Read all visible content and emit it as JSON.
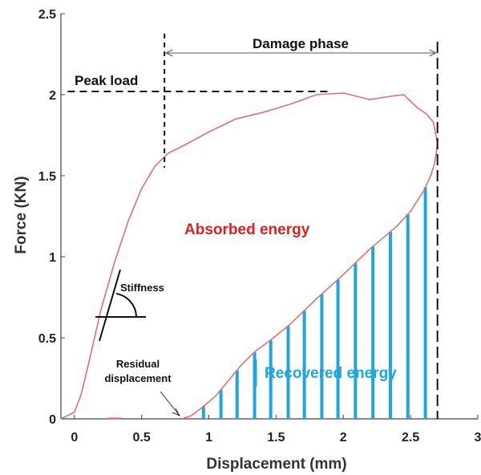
{
  "chart_data": {
    "type": "line",
    "xlabel": "Displacement (mm)",
    "ylabel": "Force (KN)",
    "xlim": [
      -0.1,
      3
    ],
    "ylim": [
      0,
      2.5
    ],
    "xticks": [
      0,
      0.5,
      1,
      1.5,
      2,
      2.5,
      3
    ],
    "xtick_labels": [
      "0",
      "0.5",
      "1",
      "1.5",
      "2",
      "2.5",
      "3"
    ],
    "yticks": [
      0,
      0.5,
      1,
      1.5,
      2,
      2.5
    ],
    "ytick_labels": [
      "0",
      "0.5",
      "1",
      "1.5",
      "2",
      "2.5"
    ],
    "grid": false,
    "curve_color": "#e07070",
    "loading_curve": {
      "x": [
        -0.1,
        0.0,
        0.05,
        0.1,
        0.15,
        0.2,
        0.3,
        0.4,
        0.5,
        0.6,
        0.7,
        0.8,
        1.0,
        1.2,
        1.4,
        1.6,
        1.8,
        2.0,
        2.2,
        2.35,
        2.45,
        2.55,
        2.62,
        2.67,
        2.7
      ],
      "y": [
        0.0,
        0.04,
        0.15,
        0.32,
        0.5,
        0.68,
        0.97,
        1.22,
        1.42,
        1.56,
        1.64,
        1.68,
        1.77,
        1.85,
        1.89,
        1.94,
        2.0,
        2.01,
        1.97,
        1.99,
        2.0,
        1.92,
        1.88,
        1.83,
        1.7
      ]
    },
    "unloading_curve": {
      "x": [
        2.7,
        2.68,
        2.65,
        2.6,
        2.5,
        2.4,
        2.3,
        2.2,
        2.0,
        1.8,
        1.6,
        1.45,
        1.35,
        1.25,
        1.15,
        1.05,
        0.95,
        0.87,
        0.8
      ],
      "y": [
        1.7,
        1.58,
        1.5,
        1.41,
        1.28,
        1.19,
        1.12,
        1.05,
        0.89,
        0.74,
        0.58,
        0.48,
        0.42,
        0.34,
        0.24,
        0.14,
        0.07,
        0.02,
        0.0
      ]
    },
    "recovered_energy_bars": {
      "color": "#1da6e0",
      "x": [
        0.96,
        1.09,
        1.21,
        1.34,
        1.46,
        1.59,
        1.71,
        1.84,
        1.96,
        2.09,
        2.22,
        2.35,
        2.48,
        2.61
      ]
    },
    "annotations": {
      "peak_load": "Peak load",
      "peak_load_value": 2.02,
      "damage_phase": "Damage phase",
      "damage_phase_start": 0.67,
      "damage_phase_end": 2.7,
      "absorbed_energy": "Absorbed energy",
      "absorbed_energy_color": "#e02020",
      "recovered_energy": "Recovered energy",
      "recovered_energy_color": "#1da6e0",
      "stiffness": "Stiffness",
      "residual_line1": "Residual",
      "residual_line2": "displacement",
      "residual_displacement_value": 0.8
    }
  }
}
